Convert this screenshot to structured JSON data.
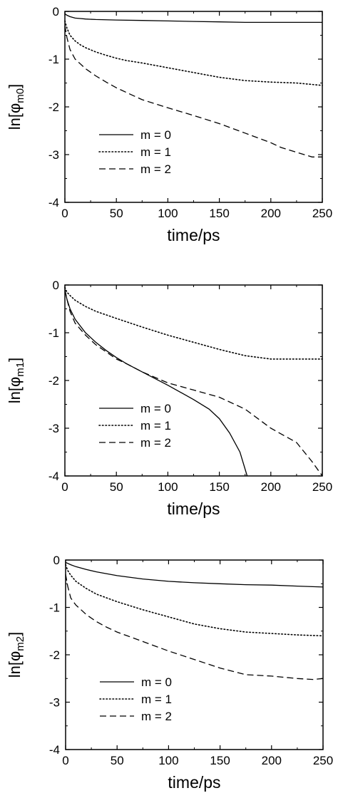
{
  "chart_data": [
    {
      "type": "line",
      "xlabel": "time/ps",
      "ylabel": {
        "prefix": "ln[",
        "symbol": "φ",
        "sub": "m0",
        "suffix": "]"
      },
      "xlim": [
        0,
        250
      ],
      "ylim": [
        -4,
        0
      ],
      "xticks": [
        0,
        50,
        100,
        150,
        200,
        250
      ],
      "yticks": [
        0,
        -1,
        -2,
        -3,
        -4
      ],
      "legend_position": "lower-left",
      "series": [
        {
          "name": "m = 0",
          "style": "solid",
          "x": [
            0,
            2,
            5,
            10,
            15,
            20,
            30,
            50,
            75,
            100,
            125,
            150,
            175,
            200,
            225,
            250
          ],
          "y": [
            -0.05,
            -0.08,
            -0.11,
            -0.14,
            -0.15,
            -0.16,
            -0.17,
            -0.18,
            -0.19,
            -0.2,
            -0.21,
            -0.22,
            -0.23,
            -0.23,
            -0.23,
            -0.23
          ]
        },
        {
          "name": "m = 1",
          "style": "dotted",
          "x": [
            0,
            2,
            5,
            10,
            15,
            20,
            30,
            40,
            50,
            60,
            75,
            100,
            125,
            150,
            175,
            200,
            225,
            250
          ],
          "y": [
            -0.2,
            -0.35,
            -0.5,
            -0.62,
            -0.7,
            -0.76,
            -0.85,
            -0.92,
            -0.98,
            -1.03,
            -1.08,
            -1.18,
            -1.28,
            -1.38,
            -1.45,
            -1.48,
            -1.5,
            -1.55
          ]
        },
        {
          "name": "m = 2",
          "style": "dashed",
          "x": [
            0,
            2,
            5,
            10,
            15,
            20,
            30,
            40,
            50,
            60,
            75,
            100,
            125,
            150,
            175,
            200,
            210,
            225,
            240,
            250
          ],
          "y": [
            -0.3,
            -0.55,
            -0.8,
            -1.0,
            -1.1,
            -1.2,
            -1.35,
            -1.48,
            -1.6,
            -1.7,
            -1.85,
            -2.02,
            -2.18,
            -2.35,
            -2.55,
            -2.75,
            -2.85,
            -2.95,
            -3.05,
            -3.05
          ]
        }
      ]
    },
    {
      "type": "line",
      "xlabel": "time/ps",
      "ylabel": {
        "prefix": "ln[",
        "symbol": "φ",
        "sub": "m1",
        "suffix": "]"
      },
      "xlim": [
        0,
        250
      ],
      "ylim": [
        -4,
        0
      ],
      "xticks": [
        0,
        50,
        100,
        150,
        200,
        250
      ],
      "yticks": [
        0,
        -1,
        -2,
        -3,
        -4
      ],
      "legend_position": "lower-left",
      "series": [
        {
          "name": "m = 0",
          "style": "solid",
          "x": [
            0,
            2,
            5,
            10,
            20,
            30,
            40,
            50,
            60,
            75,
            100,
            125,
            140,
            150,
            160,
            170,
            177
          ],
          "y": [
            -0.1,
            -0.3,
            -0.5,
            -0.72,
            -1.0,
            -1.2,
            -1.37,
            -1.52,
            -1.65,
            -1.82,
            -2.1,
            -2.4,
            -2.6,
            -2.8,
            -3.1,
            -3.5,
            -4.0
          ]
        },
        {
          "name": "m = 1",
          "style": "dotted",
          "x": [
            0,
            2,
            5,
            10,
            20,
            30,
            50,
            75,
            100,
            125,
            150,
            175,
            200,
            225,
            250
          ],
          "y": [
            -0.05,
            -0.15,
            -0.22,
            -0.32,
            -0.45,
            -0.55,
            -0.7,
            -0.88,
            -1.05,
            -1.2,
            -1.35,
            -1.48,
            -1.55,
            -1.55,
            -1.55
          ]
        },
        {
          "name": "m = 2",
          "style": "dashed",
          "x": [
            0,
            2,
            5,
            10,
            20,
            30,
            40,
            50,
            60,
            75,
            100,
            125,
            150,
            175,
            200,
            225,
            240,
            250
          ],
          "y": [
            -0.1,
            -0.3,
            -0.55,
            -0.8,
            -1.05,
            -1.25,
            -1.4,
            -1.55,
            -1.65,
            -1.82,
            -2.05,
            -2.2,
            -2.35,
            -2.6,
            -3.0,
            -3.3,
            -3.7,
            -4.0
          ]
        }
      ]
    },
    {
      "type": "line",
      "xlabel": "time/ps",
      "ylabel": {
        "prefix": "ln[",
        "symbol": "φ",
        "sub": "m2",
        "suffix": "]"
      },
      "xlim": [
        0,
        250
      ],
      "ylim": [
        -4,
        0
      ],
      "xticks": [
        0,
        50,
        100,
        150,
        200,
        250
      ],
      "yticks": [
        0,
        -1,
        -2,
        -3,
        -4
      ],
      "legend_position": "lower-left",
      "series": [
        {
          "name": "m = 0",
          "style": "solid",
          "x": [
            0,
            5,
            10,
            20,
            30,
            50,
            75,
            100,
            125,
            150,
            175,
            200,
            225,
            250
          ],
          "y": [
            -0.05,
            -0.1,
            -0.14,
            -0.2,
            -0.25,
            -0.33,
            -0.4,
            -0.45,
            -0.48,
            -0.5,
            -0.52,
            -0.53,
            -0.55,
            -0.57
          ]
        },
        {
          "name": "m = 1",
          "style": "dotted",
          "x": [
            0,
            2,
            5,
            10,
            20,
            30,
            50,
            75,
            100,
            125,
            150,
            175,
            200,
            225,
            250
          ],
          "y": [
            -0.1,
            -0.22,
            -0.32,
            -0.45,
            -0.6,
            -0.72,
            -0.88,
            -1.05,
            -1.2,
            -1.35,
            -1.45,
            -1.52,
            -1.55,
            -1.58,
            -1.6
          ]
        },
        {
          "name": "m = 2",
          "style": "dashed",
          "x": [
            0,
            2,
            5,
            10,
            15,
            20,
            30,
            40,
            50,
            60,
            75,
            100,
            125,
            150,
            175,
            200,
            225,
            240,
            250
          ],
          "y": [
            -0.3,
            -0.55,
            -0.8,
            -0.95,
            -1.05,
            -1.15,
            -1.3,
            -1.42,
            -1.52,
            -1.6,
            -1.72,
            -1.92,
            -2.1,
            -2.28,
            -2.42,
            -2.45,
            -2.5,
            -2.52,
            -2.5
          ]
        }
      ]
    }
  ]
}
